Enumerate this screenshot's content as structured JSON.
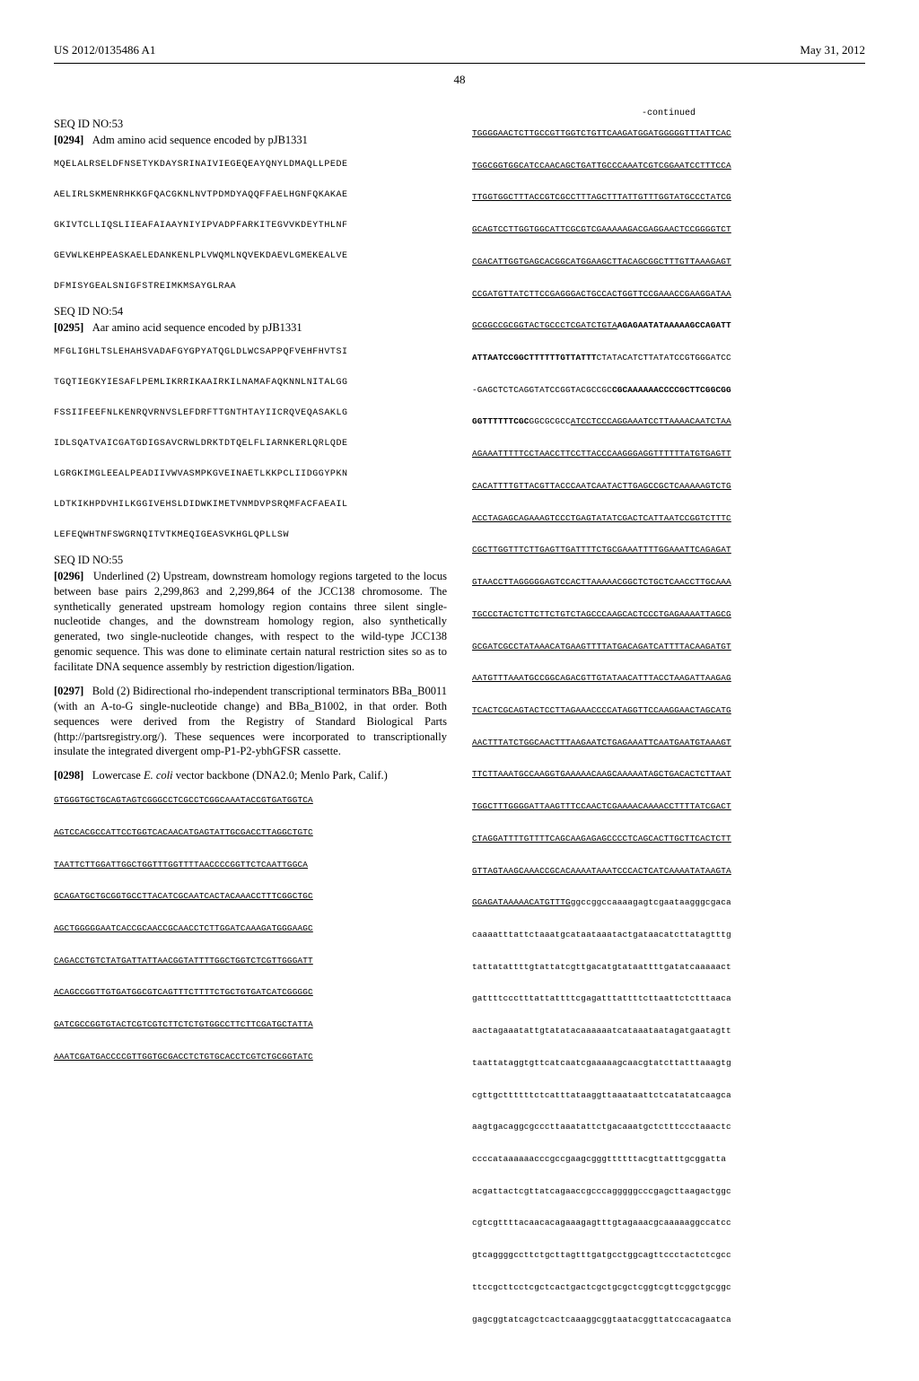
{
  "header": {
    "left": "US 2012/0135486 A1",
    "right": "May 31, 2012",
    "page": "48"
  },
  "left_col": {
    "seq53_label": "SEQ ID NO:53",
    "seq53_para_num": "[0294]",
    "seq53_para_text": "Adm amino acid sequence encoded by pJB1331",
    "seq53_block": "MQELALRSELDFNSETYKDAYSRINAIVIEGEQEAYQNYLDMAQLLPEDE\n\nAELIRLSKMENRHKKGFQACGKNLNVTPDMDYAQQFFAELHGNFQKAKAE\n\nGKIVTCLLIQSLIIEAFAIAAYNIYIPVADPFARKITEGVVKDEYTHLNF\n\nGEVWLKEHPEASKAELEDANKENLPLVWQMLNQVEKDAEVLGMEKEALVE\n\nDFMISYGEALSNIGFSTREIMKMSAYGLRAA",
    "seq54_label": "SEQ ID NO:54",
    "seq54_para_num": "[0295]",
    "seq54_para_text": "Aar amino acid sequence encoded by pJB1331",
    "seq54_block": "MFGLIGHLTSLEHAHSVADAFGYGPYATQGLDLWCSAPPQFVEHFHVTSI\n\nTGQTIEGKYIESAFLPEMLIKRRIKAAIRKILNAMAFAQKNNLNITALGG\n\nFSSIIFEEFNLKENRQVRNVSLEFDRFTTGNTHTAYIICRQVEQASAKLG\n\nIDLSQATVAICGATGDIGSAVCRWLDRKTDTQELFLIARNKERLQRLQDE\n\nLGRGKIMGLEEALPEADIIVWVASMPKGVEINAETLKKPCLIIDGGYPKN\n\nLDTKIKHPDVHILKGGIVEHSLDIDWKIMETVNMDVPSRQMFACFAEAIL\n\nLEFEQWHTNFSWGRNQITVTKMEQIGEASVKHGLQPLLSW",
    "seq55_label": "SEQ ID NO:55",
    "para296_num": "[0296]",
    "para296_text": "Underlined (2) Upstream, downstream homology regions targeted to the locus between base pairs 2,299,863 and 2,299,864 of the JCC138 chromosome. The synthetically generated upstream homology region contains three silent single-nucleotide changes, and the downstream homology region, also synthetically generated, two single-nucleotide changes, with respect to the wild-type JCC138 genomic sequence. This was done to eliminate certain natural restriction sites so as to facilitate DNA sequence assembly by restriction digestion/ligation.",
    "para297_num": "[0297]",
    "para297_text_a": "Bold (2) Bidirectional rho-independent transcriptional terminators BBa_B0011 (with an A-to-G single-nucleotide change) and BBa_B1002, in that order. Both sequences were derived from the Registry of Standard Biological Parts (http://partsregistry.org/). These sequences were incorporated to transcriptionally insulate the integrated divergent omp-P1-P2-ybhGFSR cassette.",
    "para298_num": "[0298]",
    "para298_text_a": "Lowercase ",
    "para298_text_italic": "E. coli",
    "para298_text_b": " vector backbone (DNA2.0; Menlo Park, Calif.)",
    "dna_left": [
      "GTGGGTGCTGCAGTAGTCGGGCCTCGCCTCGGCAAATACCGTGATGGTCA",
      "AGTCCACGCCATTCCTGGTCACAACATGAGTATTGCGACCTTAGGCTGTC",
      "TAATTCTTGGATTGGCTGGTTTGGTTTTAACCCCGGTTCTCAATTGGCA",
      "GCAGATGCTGCGGTGCCTTACATCGCAATCACTACAAACCTTTCGGCTGC",
      "AGCTGGGGGAATCACCGCAACCGCAACCTCTTGGATCAAAGATGGGAAGC",
      "CAGACCTGTCTATGATTATTAACGGTATTTTGGCTGGTCTCGTTGGGATT",
      "ACAGCCGGTTGTGATGGCGTCAGTTTCTTTTCTGCTGTGATCATCGGGGC",
      "GATCGCCGGTGTACTCGTCGTCTTCTCTGTGGCCTTCTTCGATGCTATTA",
      "AAATCGATGACCCCGTTGGTGCGACCTCTGTGCACCTCGTCTGCGGTATC"
    ]
  },
  "right_col": {
    "continued": "-continued",
    "dna_underlined": [
      "TGGGGAACTCTTGCCGTTGGTCTGTTCAAGATGGATGGGGGTTTATTCAC",
      "TGGCGGTGGCATCCAACAGCTGATTGCCCAAATCGTCGGAATCCTTTCCA",
      "TTGGTGGCTTTACCGTCGCCTTTAGCTTTATTGTTTGGTATGCCCTATCG",
      "GCAGTCCTTGGTGGCATTCGCGTCGAAAAAGACGAGGAACTCCGGGGTCT",
      "CGACATTGGTGAGCACGGCATGGAAGCTTACAGCGGCTTTGTTAAAGAGT",
      "CCGATGTTATCTTCCGAGGGACTGCCACTGGTTCCGAAACCGAAGGATAA",
      "GCGGCCGCGGTACTGCCCTCGATCTGTA"
    ],
    "dna_bold": [
      "AGAGAATATAAAAAGCCAGATT",
      "ATTAATCCGGCTTTTTTGTTATTT"
    ],
    "dna_plain_1": "CTATACATCTTATATCCGTGGGATCC",
    "dna_plain_2": "-GAGCTCTCAGGTATCCGGTACGCCGC",
    "dna_bold_inline": "CGCAAAAAACCCCGCTTCGGCGG",
    "dna_bold_line2": "GGTTTTTTCGC",
    "dna_after_bold": "GGCGCGCC",
    "dna_underlined_right": [
      "ATCCTCCCAGGAAATCCTTAAAACAATCTAA",
      "AGAAATTTTTCCTAACCTTCCTTACCCAAGGGAGGTTTTTTATGTGAGTT",
      "CACATTTTGTTACGTTACCCAATCAATACTTGAGCCGCTCAAAAAGTCTG",
      "ACCTAGAGCAGAAAGTCCCTGAGTATATCGACTCATTAATCCGGTCTTTC",
      "CGCTTGGTTTCTTGAGTTGATTTTCTGCGAAATTTTGGAAATTCAGAGAT",
      "GTAACCTTAGGGGGAGTCCACTTAAAAACGGCTCTGCTCAACCTTGCAAA",
      "TGCCCTACTCTTCTTCTGTCTAGCCCAAGCACTCCCTGAGAAAATTAGCG",
      "GCGATCGCCTATAAACATGAAGTTTTATGACAGATCATTTTACAAGATGT",
      "AATGTTTAAATGCCGGCAGACGTTGTATAACATTTACCTAAGATTAAGAG",
      "TCACTCGCAGTACTCCTTAGAAACCCCATAGGTTCCAAGGAACTAGCATG",
      "AACTTTATCTGGCAACTTTAAGAATCTGAGAAATTCAATGAATGTAAAGT",
      "TTCTTAAATGCCAAGGTGAAAAACAAGCAAAAATAGCTGACACTCTTAAT",
      "TGGCTTTGGGGATTAAGTTTCCAACTCGAAAACAAAACCTTTTATCGACT",
      "CTAGGATTTTGTTTTCAGCAAGAGAGCCCCTCAGCACTTGCTTCACTCTT",
      "GTTAGTAAGCAAACCGCACAAAATAAATCCCACTCATCAAAATATAAGTA",
      "GGAGATAAAAACATGTTTG"
    ],
    "dna_lowercase": [
      "ggccggccaaaagagtcgaataagggcgaca",
      "caaaatttattctaaatgcataataaatactgataacatcttatagtttg",
      "tattatattttgtattatcgttgacatgtataattttgatatcaaaaact",
      "gattttccctttattattttcgagatttattttcttaattctctttaaca",
      "aactagaaatattgtatatacaaaaaatcataaataatagatgaatagtt",
      "taattataggtgttcatcaatcgaaaaagcaacgtatcttatttaaagtg",
      "cgttgcttttttctcatttataaggttaaataattctcatatatcaagca",
      "aagtgacaggcgcccttaaatattctgacaaatgctctttccctaaactc",
      "ccccataaaaaacccgccgaagcgggttttttacgttatttgcggatta",
      "acgattactcgttatcagaaccgcccagggggcccgagcttaagactggc",
      "cgtcgttttacaacacagaaagagtttgtagaaacgcaaaaaggccatcc",
      "gtcaggggccttctgcttagtttgatgcctggcagttccctactctcgcc",
      "ttccgcttcctcgctcactgactcgctgcgctcggtcgttcggctgcggc",
      "gagcggtatcagctcactcaaaggcggtaatacggttatccacagaatca"
    ]
  }
}
